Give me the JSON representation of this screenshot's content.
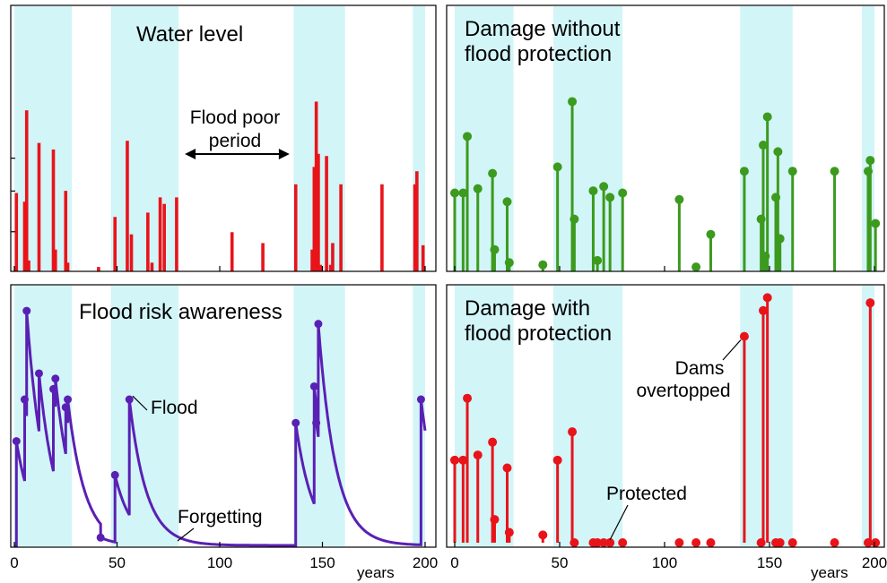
{
  "colors": {
    "band": "#d2f5f8",
    "frame": "#000000",
    "red": "#e8141a",
    "green": "#3c9a1e",
    "purple": "#5a20b4",
    "text": "#000000"
  },
  "shared": {
    "xlim": [
      0,
      200
    ],
    "x_ticks": [
      "0",
      "50",
      "100",
      "150",
      "200"
    ],
    "x_unit": "years",
    "flood_rich_periods": [
      [
        0,
        28
      ],
      [
        47,
        80
      ],
      [
        136,
        161
      ],
      [
        194,
        200
      ]
    ]
  },
  "chart_data": [
    {
      "id": "water",
      "type": "bar",
      "title": "Water level",
      "annotations": [
        {
          "id": "flood-poor",
          "lines": [
            "Flood poor",
            "period"
          ],
          "arrow_from": 83,
          "arrow_to": 134
        }
      ],
      "xlabel": "",
      "ylabel": "",
      "ylim": [
        0,
        1
      ],
      "y_ticks": [
        0.35,
        0.71,
        1.0
      ],
      "points": [
        {
          "x": 1,
          "y": 0.36
        },
        {
          "x": 5,
          "y": 0.32
        },
        {
          "x": 6,
          "y": 0.74
        },
        {
          "x": 7,
          "y": 0.05
        },
        {
          "x": 12,
          "y": 0.59
        },
        {
          "x": 19,
          "y": 0.56
        },
        {
          "x": 20,
          "y": 0.1
        },
        {
          "x": 25,
          "y": 0.37
        },
        {
          "x": 26,
          "y": 0.04
        },
        {
          "x": 41,
          "y": 0.02
        },
        {
          "x": 49,
          "y": 0.25
        },
        {
          "x": 55,
          "y": 0.6
        },
        {
          "x": 57,
          "y": 0.17
        },
        {
          "x": 65,
          "y": 0.27
        },
        {
          "x": 67,
          "y": 0.04
        },
        {
          "x": 71,
          "y": 0.34
        },
        {
          "x": 73,
          "y": 0.31
        },
        {
          "x": 79,
          "y": 0.34
        },
        {
          "x": 106,
          "y": 0.18
        },
        {
          "x": 121,
          "y": 0.13
        },
        {
          "x": 137,
          "y": 0.4
        },
        {
          "x": 145,
          "y": 0.1
        },
        {
          "x": 146,
          "y": 0.48
        },
        {
          "x": 147,
          "y": 0.78
        },
        {
          "x": 148,
          "y": 0.54
        },
        {
          "x": 149,
          "y": 0.03
        },
        {
          "x": 152,
          "y": 0.53
        },
        {
          "x": 154,
          "y": 0.03
        },
        {
          "x": 155,
          "y": 0.13
        },
        {
          "x": 159,
          "y": 0.4
        },
        {
          "x": 179,
          "y": 0.4
        },
        {
          "x": 195,
          "y": 0.4
        },
        {
          "x": 196,
          "y": 0.46
        },
        {
          "x": 199,
          "y": 0.12
        }
      ]
    },
    {
      "id": "awareness",
      "type": "line",
      "title": "Flood risk awareness",
      "annotations": [
        {
          "id": "flood",
          "text": "Flood",
          "x": 55,
          "y": 0.58
        },
        {
          "id": "forgetting",
          "text": "Forgetting",
          "x": 82,
          "y": 0.02
        }
      ],
      "xlabel": "",
      "ylabel": "",
      "ylim": [
        0,
        1
      ],
      "decay_rate": 0.12,
      "start_level": 0.0,
      "flood_events": [
        {
          "x": 1,
          "y": 0.4
        },
        {
          "x": 5,
          "y": 0.56
        },
        {
          "x": 6,
          "y": 0.9
        },
        {
          "x": 12,
          "y": 0.66
        },
        {
          "x": 19,
          "y": 0.6
        },
        {
          "x": 20,
          "y": 0.64
        },
        {
          "x": 25,
          "y": 0.53
        },
        {
          "x": 26,
          "y": 0.56
        },
        {
          "x": 42,
          "y": 0.03
        },
        {
          "x": 49,
          "y": 0.27
        },
        {
          "x": 56,
          "y": 0.56
        },
        {
          "x": 137,
          "y": 0.47
        },
        {
          "x": 146,
          "y": 0.61
        },
        {
          "x": 147,
          "y": 0.47
        },
        {
          "x": 148,
          "y": 0.85
        },
        {
          "x": 198,
          "y": 0.56
        }
      ]
    },
    {
      "id": "damage-without",
      "type": "scatter",
      "title": "Damage without\nflood protection",
      "xlabel": "",
      "ylabel": "",
      "ylim": [
        0,
        1
      ],
      "points": [
        {
          "x": 0,
          "y": 0.36
        },
        {
          "x": 4,
          "y": 0.36
        },
        {
          "x": 6,
          "y": 0.62
        },
        {
          "x": 11,
          "y": 0.38
        },
        {
          "x": 18,
          "y": 0.45
        },
        {
          "x": 19,
          "y": 0.1
        },
        {
          "x": 25,
          "y": 0.32
        },
        {
          "x": 26,
          "y": 0.04
        },
        {
          "x": 42,
          "y": 0.03
        },
        {
          "x": 49,
          "y": 0.48
        },
        {
          "x": 56,
          "y": 0.78
        },
        {
          "x": 57,
          "y": 0.24
        },
        {
          "x": 66,
          "y": 0.37
        },
        {
          "x": 68,
          "y": 0.05
        },
        {
          "x": 71,
          "y": 0.39
        },
        {
          "x": 74,
          "y": 0.34
        },
        {
          "x": 80,
          "y": 0.36
        },
        {
          "x": 107,
          "y": 0.33
        },
        {
          "x": 122,
          "y": 0.17
        },
        {
          "x": 115,
          "y": 0.02
        },
        {
          "x": 138,
          "y": 0.46
        },
        {
          "x": 146,
          "y": 0.24
        },
        {
          "x": 147,
          "y": 0.58
        },
        {
          "x": 148,
          "y": 0.07
        },
        {
          "x": 149,
          "y": 0.71
        },
        {
          "x": 153,
          "y": 0.34
        },
        {
          "x": 154,
          "y": 0.55
        },
        {
          "x": 155,
          "y": 0.15
        },
        {
          "x": 161,
          "y": 0.46
        },
        {
          "x": 181,
          "y": 0.46
        },
        {
          "x": 197,
          "y": 0.46
        },
        {
          "x": 198,
          "y": 0.51
        },
        {
          "x": 201,
          "y": 0.22
        }
      ]
    },
    {
      "id": "damage-with",
      "type": "scatter",
      "title": "Damage with\nflood protection",
      "annotations": [
        {
          "id": "dams-overtopped",
          "lines": [
            "Dams",
            "overtopped"
          ],
          "x": 138,
          "y": 0.8
        },
        {
          "id": "protected",
          "text": "Protected",
          "x": 70,
          "y": 0.0
        }
      ],
      "xlabel": "",
      "ylabel": "",
      "ylim": [
        0,
        1
      ],
      "points": [
        {
          "x": 0,
          "y": 0.32
        },
        {
          "x": 4,
          "y": 0.32
        },
        {
          "x": 6,
          "y": 0.56
        },
        {
          "x": 11,
          "y": 0.34
        },
        {
          "x": 18,
          "y": 0.39
        },
        {
          "x": 19,
          "y": 0.09
        },
        {
          "x": 25,
          "y": 0.29
        },
        {
          "x": 26,
          "y": 0.04
        },
        {
          "x": 42,
          "y": 0.03
        },
        {
          "x": 49,
          "y": 0.32
        },
        {
          "x": 56,
          "y": 0.43
        },
        {
          "x": 57,
          "y": 0.0
        },
        {
          "x": 66,
          "y": 0.0
        },
        {
          "x": 68,
          "y": 0.0
        },
        {
          "x": 71,
          "y": 0.0
        },
        {
          "x": 74,
          "y": 0.0
        },
        {
          "x": 80,
          "y": 0.0
        },
        {
          "x": 107,
          "y": 0.0
        },
        {
          "x": 115,
          "y": 0.0
        },
        {
          "x": 122,
          "y": 0.0
        },
        {
          "x": 138,
          "y": 0.8
        },
        {
          "x": 146,
          "y": 0.0
        },
        {
          "x": 147,
          "y": 0.9
        },
        {
          "x": 149,
          "y": 0.95
        },
        {
          "x": 153,
          "y": 0.0
        },
        {
          "x": 155,
          "y": 0.0
        },
        {
          "x": 161,
          "y": 0.0
        },
        {
          "x": 181,
          "y": 0.0
        },
        {
          "x": 197,
          "y": 0.0
        },
        {
          "x": 198,
          "y": 0.93
        },
        {
          "x": 201,
          "y": 0.0
        }
      ]
    }
  ]
}
